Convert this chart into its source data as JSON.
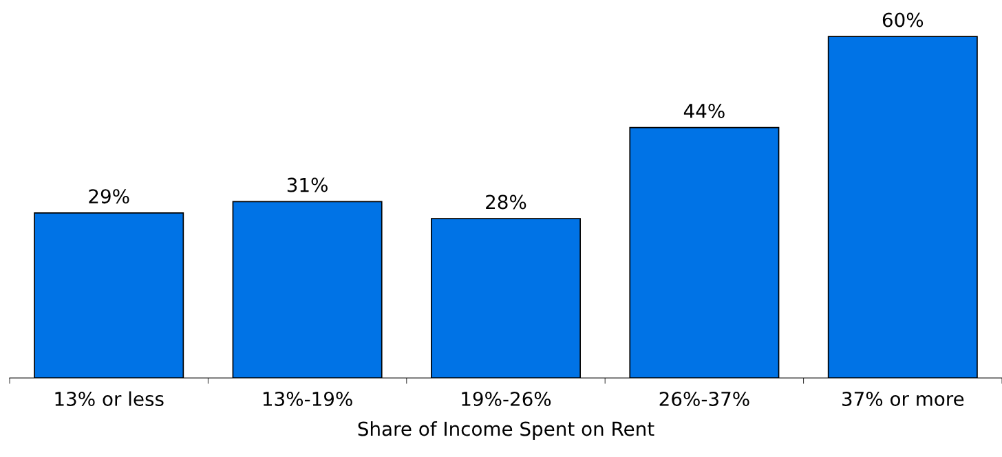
{
  "chart_data": {
    "type": "bar",
    "xlabel": "Share of Income Spent on Rent",
    "categories": [
      "13% or less",
      "13%-19%",
      "19%-26%",
      "26%-37%",
      "37% or more"
    ],
    "values": [
      29,
      31,
      28,
      44,
      60
    ],
    "value_labels": [
      "29%",
      "31%",
      "28%",
      "44%",
      "60%"
    ],
    "color": "#0073e6",
    "grid": false,
    "legend": false
  }
}
